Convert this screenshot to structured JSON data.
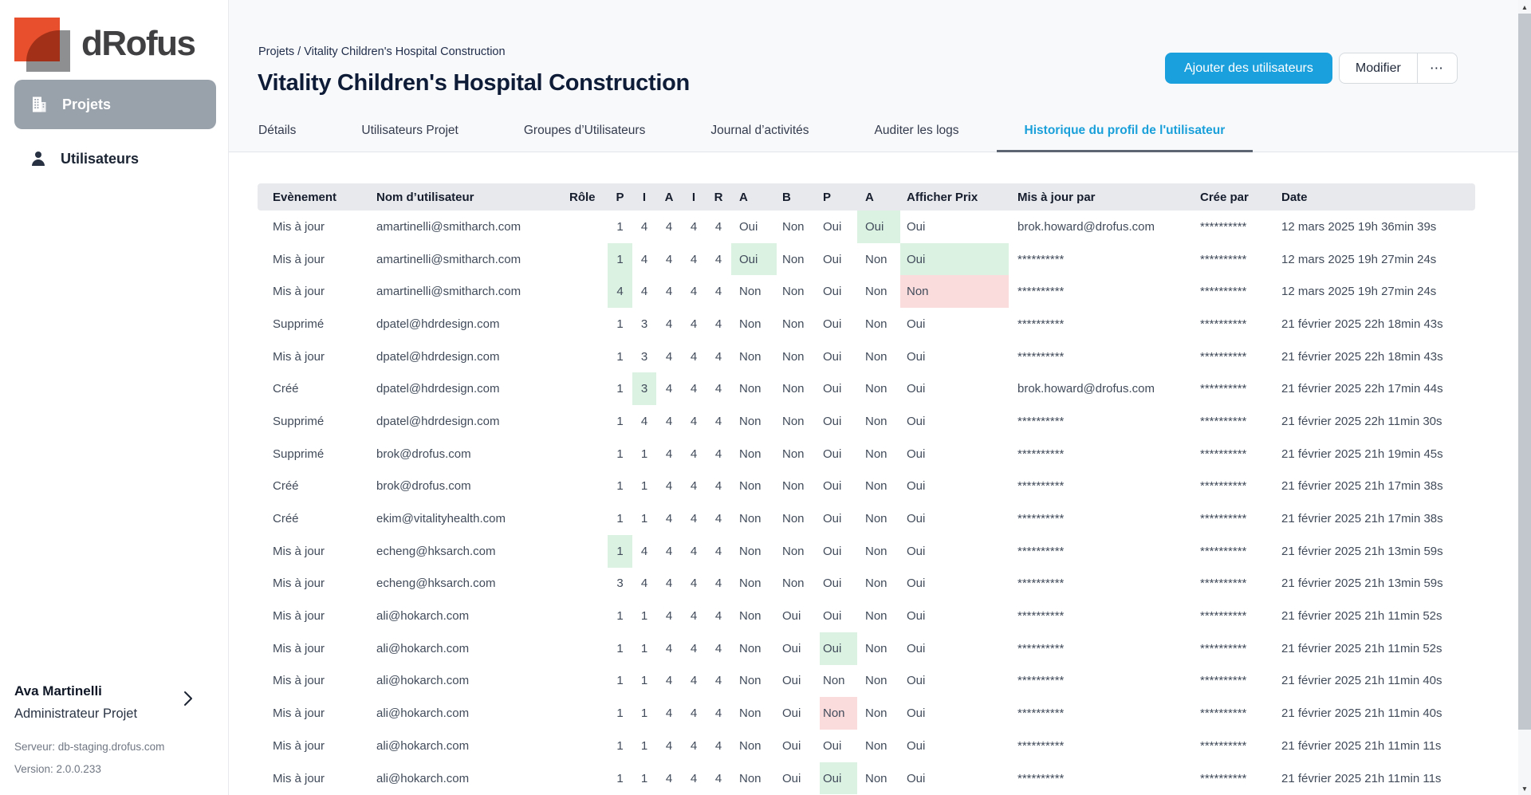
{
  "app": {
    "logo_text": "dRofus"
  },
  "sidebar": {
    "items": [
      {
        "label": "Projets"
      },
      {
        "label": "Utilisateurs"
      }
    ],
    "user": {
      "name": "Ava Martinelli",
      "role": "Administrateur Projet"
    },
    "server_label": "Serveur: db-staging.drofus.com",
    "version_label": "Version: 2.0.0.233"
  },
  "header": {
    "breadcrumb": "Projets / Vitality Children's Hospital Construction",
    "title": "Vitality Children's Hospital Construction",
    "add_users_label": "Ajouter des utilisateurs",
    "modify_label": "Modifier",
    "more_label": "⋯"
  },
  "tabs": [
    {
      "label": "Détails",
      "active": false
    },
    {
      "label": "Utilisateurs Projet",
      "active": false
    },
    {
      "label": "Groupes d’Utilisateurs",
      "active": false
    },
    {
      "label": "Journal d’activités",
      "active": false
    },
    {
      "label": "Auditer les logs",
      "active": false
    },
    {
      "label": "Historique du profil de l'utilisateur",
      "active": true
    }
  ],
  "colors": {
    "accent_blue": "#1aa0dc",
    "active_tab_blue": "#199fd9",
    "highlight_green": "#dbf2e3",
    "highlight_red": "#fadcdd",
    "logo_orange": "#e8502d",
    "logo_gray": "#8e8f90"
  },
  "table": {
    "headers": [
      "Evènement",
      "Nom d’utilisateur",
      "Rôle",
      "P",
      "I",
      "A",
      "I",
      "R",
      "A",
      "B",
      "P",
      "A",
      "Afficher Prix",
      "Mis à jour par",
      "Crée par",
      "Date"
    ],
    "rows": [
      {
        "cells": [
          "Mis à jour",
          "amartinelli@smitharch.com",
          "",
          "1",
          "4",
          "4",
          "4",
          "4",
          "Oui",
          "Non",
          "Oui",
          "Oui",
          "Oui",
          "brok.howard@drofus.com",
          "**********",
          "12 mars 2025 19h 36min 39s"
        ],
        "hl": {
          "11": "green"
        }
      },
      {
        "cells": [
          "Mis à jour",
          "amartinelli@smitharch.com",
          "",
          "1",
          "4",
          "4",
          "4",
          "4",
          "Oui",
          "Non",
          "Oui",
          "Non",
          "Oui",
          "**********",
          "**********",
          "12 mars 2025 19h 27min 24s"
        ],
        "hl": {
          "3": "green",
          "8": "green",
          "12": "green"
        }
      },
      {
        "cells": [
          "Mis à jour",
          "amartinelli@smitharch.com",
          "",
          "4",
          "4",
          "4",
          "4",
          "4",
          "Non",
          "Non",
          "Oui",
          "Non",
          "Non",
          "**********",
          "**********",
          "12 mars 2025 19h 27min 24s"
        ],
        "hl": {
          "3": "green",
          "12": "red"
        }
      },
      {
        "cells": [
          "Supprimé",
          "dpatel@hdrdesign.com",
          "",
          "1",
          "3",
          "4",
          "4",
          "4",
          "Non",
          "Non",
          "Oui",
          "Non",
          "Oui",
          "**********",
          "**********",
          "21 février 2025 22h 18min 43s"
        ],
        "hl": {}
      },
      {
        "cells": [
          "Mis à jour",
          "dpatel@hdrdesign.com",
          "",
          "1",
          "3",
          "4",
          "4",
          "4",
          "Non",
          "Non",
          "Oui",
          "Non",
          "Oui",
          "**********",
          "**********",
          "21 février 2025 22h 18min 43s"
        ],
        "hl": {}
      },
      {
        "cells": [
          "Créé",
          "dpatel@hdrdesign.com",
          "",
          "1",
          "3",
          "4",
          "4",
          "4",
          "Non",
          "Non",
          "Oui",
          "Non",
          "Oui",
          "brok.howard@drofus.com",
          "**********",
          "21 février 2025 22h 17min 44s"
        ],
        "hl": {
          "4": "green"
        }
      },
      {
        "cells": [
          "Supprimé",
          "dpatel@hdrdesign.com",
          "",
          "1",
          "4",
          "4",
          "4",
          "4",
          "Non",
          "Non",
          "Oui",
          "Non",
          "Oui",
          "**********",
          "**********",
          "21 février 2025 22h 11min 30s"
        ],
        "hl": {}
      },
      {
        "cells": [
          "Supprimé",
          "brok@drofus.com",
          "",
          "1",
          "1",
          "4",
          "4",
          "4",
          "Non",
          "Non",
          "Oui",
          "Non",
          "Oui",
          "**********",
          "**********",
          "21 février 2025 21h 19min 45s"
        ],
        "hl": {}
      },
      {
        "cells": [
          "Créé",
          "brok@drofus.com",
          "",
          "1",
          "1",
          "4",
          "4",
          "4",
          "Non",
          "Non",
          "Oui",
          "Non",
          "Oui",
          "**********",
          "**********",
          "21 février 2025 21h 17min 38s"
        ],
        "hl": {}
      },
      {
        "cells": [
          "Créé",
          "ekim@vitalityhealth.com",
          "",
          "1",
          "1",
          "4",
          "4",
          "4",
          "Non",
          "Non",
          "Oui",
          "Non",
          "Oui",
          "**********",
          "**********",
          "21 février 2025 21h 17min 38s"
        ],
        "hl": {}
      },
      {
        "cells": [
          "Mis à jour",
          "echeng@hksarch.com",
          "",
          "1",
          "4",
          "4",
          "4",
          "4",
          "Non",
          "Non",
          "Oui",
          "Non",
          "Oui",
          "**********",
          "**********",
          "21 février 2025 21h 13min 59s"
        ],
        "hl": {
          "3": "green"
        }
      },
      {
        "cells": [
          "Mis à jour",
          "echeng@hksarch.com",
          "",
          "3",
          "4",
          "4",
          "4",
          "4",
          "Non",
          "Non",
          "Oui",
          "Non",
          "Oui",
          "**********",
          "**********",
          "21 février 2025 21h 13min 59s"
        ],
        "hl": {}
      },
      {
        "cells": [
          "Mis à jour",
          "ali@hokarch.com",
          "",
          "1",
          "1",
          "4",
          "4",
          "4",
          "Non",
          "Oui",
          "Oui",
          "Non",
          "Oui",
          "**********",
          "**********",
          "21 février 2025 21h 11min 52s"
        ],
        "hl": {}
      },
      {
        "cells": [
          "Mis à jour",
          "ali@hokarch.com",
          "",
          "1",
          "1",
          "4",
          "4",
          "4",
          "Non",
          "Oui",
          "Oui",
          "Non",
          "Oui",
          "**********",
          "**********",
          "21 février 2025 21h 11min 52s"
        ],
        "hl": {
          "10": "green"
        }
      },
      {
        "cells": [
          "Mis à jour",
          "ali@hokarch.com",
          "",
          "1",
          "1",
          "4",
          "4",
          "4",
          "Non",
          "Oui",
          "Non",
          "Non",
          "Oui",
          "**********",
          "**********",
          "21 février 2025 21h 11min 40s"
        ],
        "hl": {}
      },
      {
        "cells": [
          "Mis à jour",
          "ali@hokarch.com",
          "",
          "1",
          "1",
          "4",
          "4",
          "4",
          "Non",
          "Oui",
          "Non",
          "Non",
          "Oui",
          "**********",
          "**********",
          "21 février 2025 21h 11min 40s"
        ],
        "hl": {
          "10": "red"
        }
      },
      {
        "cells": [
          "Mis à jour",
          "ali@hokarch.com",
          "",
          "1",
          "1",
          "4",
          "4",
          "4",
          "Non",
          "Oui",
          "Oui",
          "Non",
          "Oui",
          "**********",
          "**********",
          "21 février 2025 21h 11min 11s"
        ],
        "hl": {}
      },
      {
        "cells": [
          "Mis à jour",
          "ali@hokarch.com",
          "",
          "1",
          "1",
          "4",
          "4",
          "4",
          "Non",
          "Oui",
          "Oui",
          "Non",
          "Oui",
          "**********",
          "**********",
          "21 février 2025 21h 11min 11s"
        ],
        "hl": {
          "10": "green"
        }
      }
    ]
  },
  "scrollbar": {
    "up_glyph": "▲",
    "down_glyph": "▼"
  }
}
